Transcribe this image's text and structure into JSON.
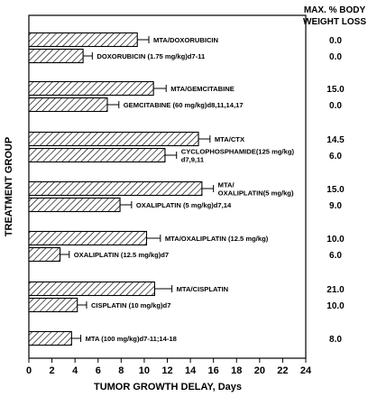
{
  "chart_data": {
    "type": "bar",
    "orientation": "horizontal",
    "xlabel": "TUMOR GROWTH DELAY, Days",
    "ylabel": "TREATMENT GROUP",
    "right_header_line1": "MAX. % BODY",
    "right_header_line2": "WEIGHT LOSS",
    "xlim": [
      0,
      24
    ],
    "xticks": [
      "0",
      "2",
      "4",
      "6",
      "8",
      "10",
      "12",
      "14",
      "16",
      "18",
      "20",
      "22",
      "24"
    ],
    "grid": false,
    "bars": [
      {
        "label": [
          "MTA/DOXORUBICIN"
        ],
        "value": 9.4,
        "error": 1.0,
        "weight_loss": "0.0"
      },
      {
        "label": [
          "DOXORUBICIN (1.75 mg/kg)d7-11"
        ],
        "value": 4.7,
        "error": 0.8,
        "weight_loss": "0.0"
      },
      {
        "label": [
          "MTA/GEMCITABINE"
        ],
        "value": 10.8,
        "error": 1.1,
        "weight_loss": "15.0"
      },
      {
        "label": [
          "GEMCITABINE (60 mg/kg)d8,11,14,17"
        ],
        "value": 6.8,
        "error": 1.0,
        "weight_loss": "0.0"
      },
      {
        "label": [
          "MTA/CTX"
        ],
        "value": 14.7,
        "error": 1.0,
        "weight_loss": "14.5"
      },
      {
        "label": [
          "CYCLOPHOSPHAMIDE(125 mg/kg)",
          "d7,9,11"
        ],
        "value": 11.8,
        "error": 1.0,
        "weight_loss": "6.0"
      },
      {
        "label": [
          "MTA/",
          "OXALIPLATIN(5 mg/kg)"
        ],
        "value": 15.0,
        "error": 1.0,
        "weight_loss": "15.0"
      },
      {
        "label": [
          "OXALIPLATIN (5 mg/kg)d7,14"
        ],
        "value": 7.9,
        "error": 1.0,
        "weight_loss": "9.0"
      },
      {
        "label": [
          "MTA/OXALIPLATIN (12.5 mg/kg)"
        ],
        "value": 10.2,
        "error": 1.2,
        "weight_loss": "10.0"
      },
      {
        "label": [
          "OXALIPLATIN (12.5 mg/kg)d7"
        ],
        "value": 2.7,
        "error": 0.8,
        "weight_loss": "6.0"
      },
      {
        "label": [
          "MTA/CISPLATIN"
        ],
        "value": 10.9,
        "error": 1.5,
        "weight_loss": "21.0"
      },
      {
        "label": [
          "CISPLATIN (10 mg/kg)d7"
        ],
        "value": 4.2,
        "error": 0.8,
        "weight_loss": "10.0"
      },
      {
        "label": [
          "MTA (100 mg/kg)d7-11;14-18"
        ],
        "value": 3.7,
        "error": 0.8,
        "weight_loss": "8.0"
      }
    ]
  }
}
